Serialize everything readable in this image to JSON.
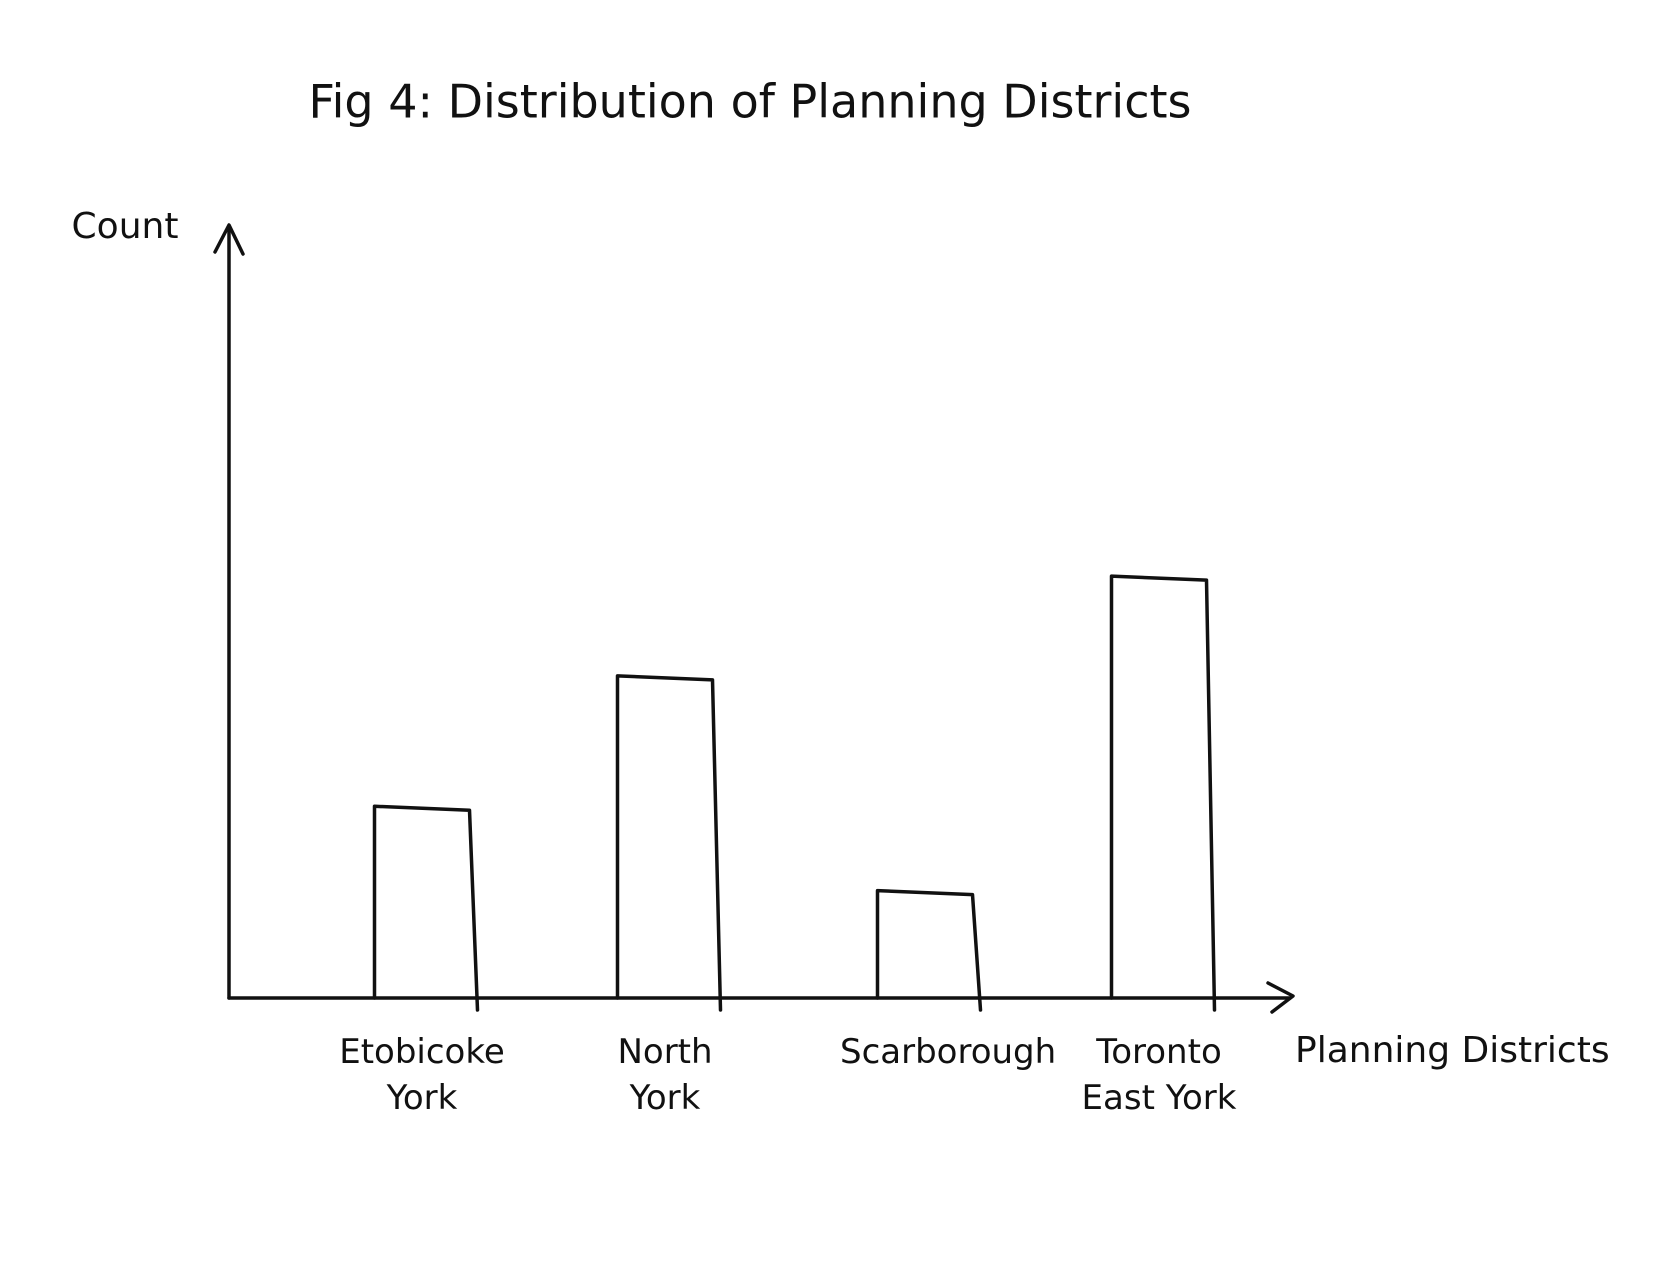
{
  "chart_data": {
    "type": "bar",
    "title": "Fig 4: Distribution of Planning Districts",
    "x_label": "Planning Districts",
    "y_label": "Count",
    "categories": [
      "Etobicoke York",
      "North York",
      "Scarborough",
      "Toronto East York"
    ],
    "values": [
      25,
      42,
      14,
      55
    ],
    "color": "#111111",
    "ylim": [
      0,
      100
    ],
    "grid": false
  }
}
